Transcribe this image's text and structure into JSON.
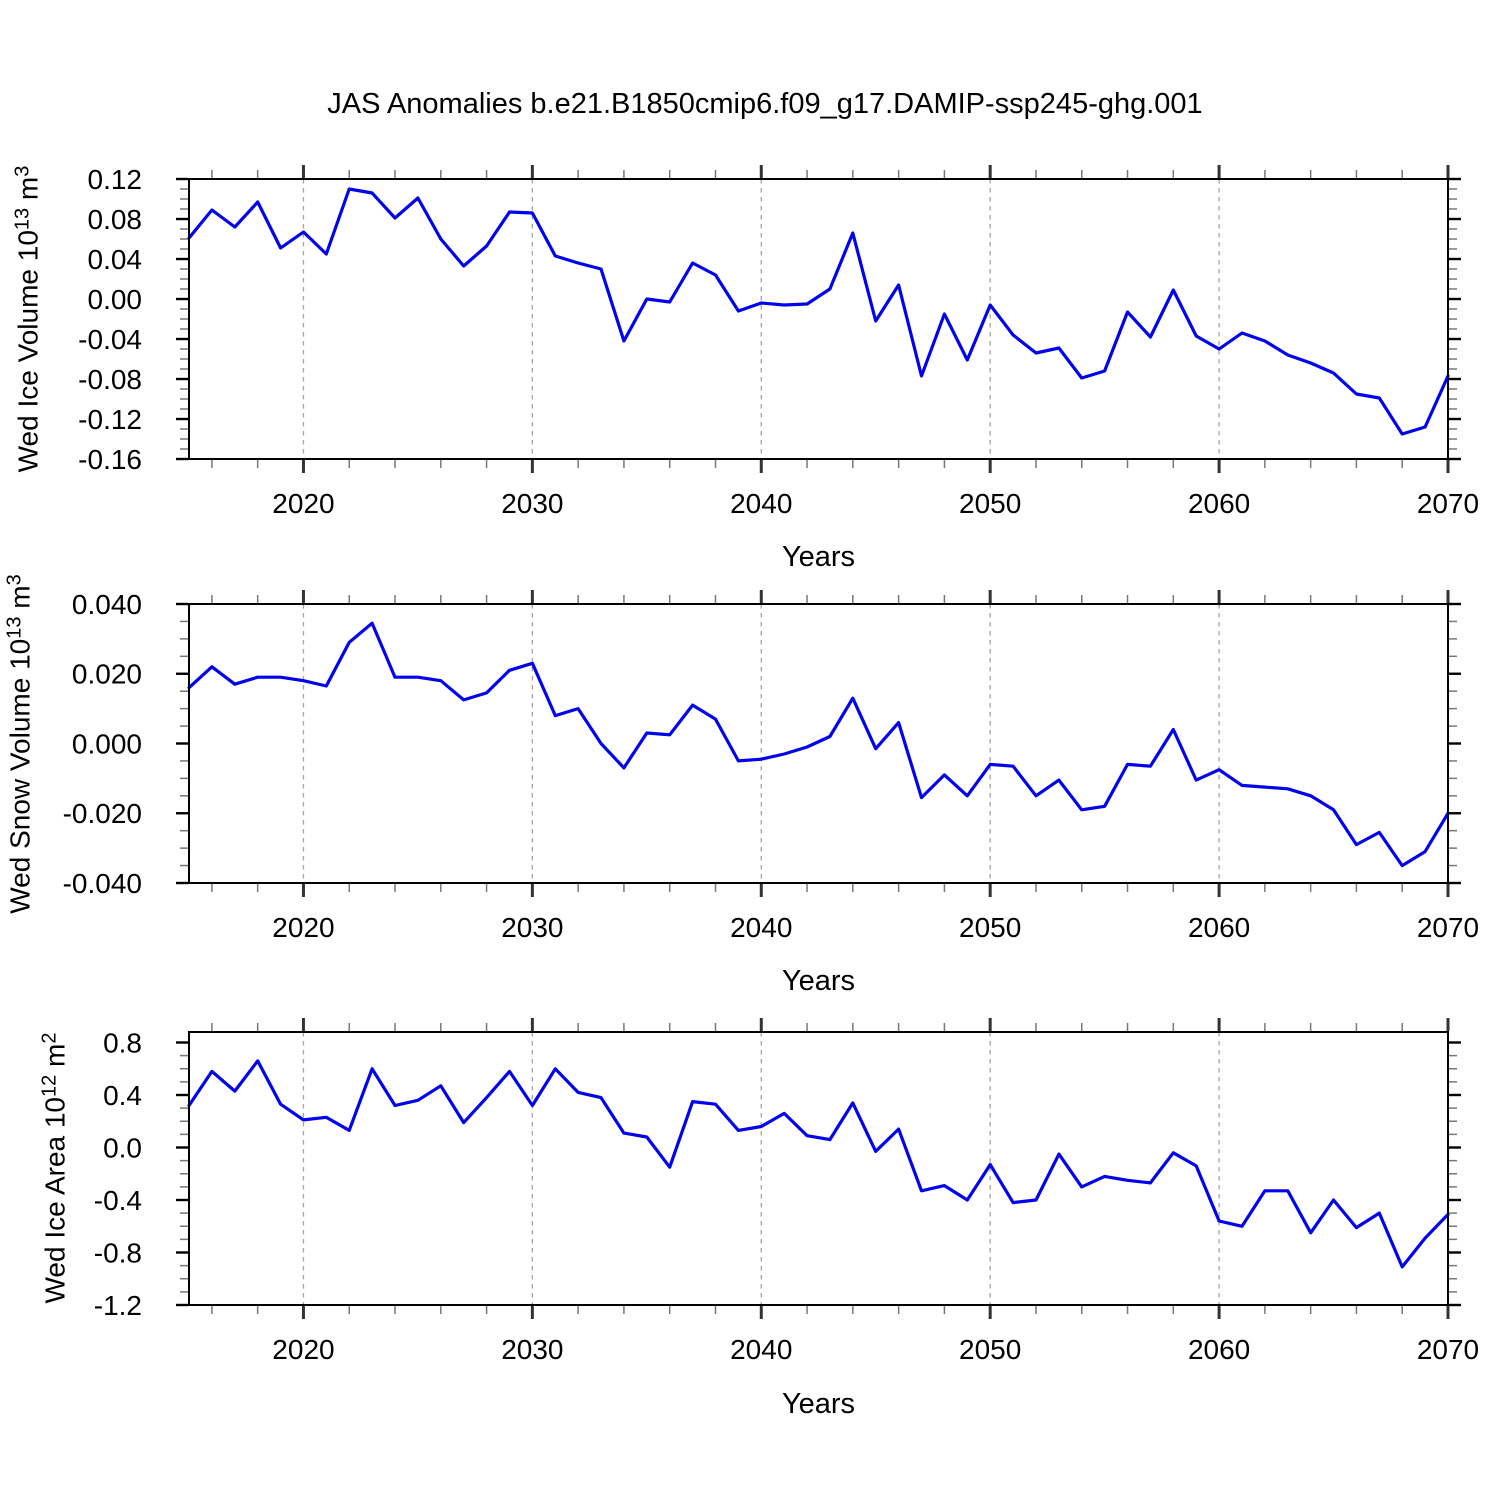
{
  "title": "JAS Anomalies b.e21.B1850cmip6.f09_g17.DAMIP-ssp245-ghg.001",
  "line_color": "#0202ee",
  "grid_color": "#a5a5a5",
  "chart_data": {
    "type": "line",
    "xlabel": "Years",
    "years": [
      2015,
      2016,
      2017,
      2018,
      2019,
      2020,
      2021,
      2022,
      2023,
      2024,
      2025,
      2026,
      2027,
      2028,
      2029,
      2030,
      2031,
      2032,
      2033,
      2034,
      2035,
      2036,
      2037,
      2038,
      2039,
      2040,
      2041,
      2042,
      2043,
      2044,
      2045,
      2046,
      2047,
      2048,
      2049,
      2050,
      2051,
      2052,
      2053,
      2054,
      2055,
      2056,
      2057,
      2058,
      2059,
      2060,
      2061,
      2062,
      2063,
      2064,
      2065,
      2066,
      2067,
      2068,
      2069,
      2070
    ],
    "xlim": [
      2015,
      2070
    ],
    "xticks": [
      2020,
      2030,
      2040,
      2050,
      2060,
      2070
    ],
    "xtick_labels": [
      "2020",
      "2030",
      "2040",
      "2050",
      "2060",
      "2070"
    ],
    "xminor_step_years": 2,
    "grid_years": [
      2020,
      2030,
      2040,
      2050,
      2060
    ],
    "grid_style": "dashed-vertical",
    "legend": "none",
    "panels": [
      {
        "id": "ice-volume",
        "ylabel_text": "Wed Ice Volume 10^13 m^3",
        "ylabel_parts": {
          "pre": "Wed Ice Volume 10",
          "exp1": "13",
          "mid": " m",
          "exp2": "3"
        },
        "ylim": [
          -0.16,
          0.12
        ],
        "yticks": [
          0.12,
          0.08,
          0.04,
          0.0,
          -0.04,
          -0.08,
          -0.12,
          -0.16
        ],
        "ytick_labels": [
          "0.12",
          "0.08",
          "0.04",
          "0.00",
          "-0.04",
          "-0.08",
          "-0.12",
          "-0.16"
        ],
        "yminor_step": 0.01,
        "values": [
          0.061,
          0.089,
          0.072,
          0.097,
          0.051,
          0.067,
          0.045,
          0.11,
          0.106,
          0.081,
          0.101,
          0.06,
          0.033,
          0.053,
          0.087,
          0.086,
          0.043,
          0.036,
          0.03,
          -0.042,
          0.0,
          -0.003,
          0.036,
          0.024,
          -0.012,
          -0.004,
          -0.006,
          -0.005,
          0.01,
          0.066,
          -0.022,
          0.014,
          -0.077,
          -0.015,
          -0.061,
          -0.006,
          -0.036,
          -0.054,
          -0.049,
          -0.079,
          -0.072,
          -0.013,
          -0.038,
          0.009,
          -0.037,
          -0.05,
          -0.034,
          -0.042,
          -0.056,
          -0.064,
          -0.074,
          -0.095,
          -0.099,
          -0.135,
          -0.128,
          -0.077
        ]
      },
      {
        "id": "snow-volume",
        "ylabel_text": "Wed Snow Volume 10^13 m^3",
        "ylabel_parts": {
          "pre": "Wed Snow Volume 10",
          "exp1": "13",
          "mid": " m",
          "exp2": "3"
        },
        "ylim": [
          -0.04,
          0.04
        ],
        "yticks": [
          0.04,
          0.02,
          0.0,
          -0.02,
          -0.04
        ],
        "ytick_labels": [
          "0.040",
          "0.020",
          "0.000",
          "-0.020",
          "-0.040"
        ],
        "yminor_step": 0.005,
        "values": [
          0.016,
          0.022,
          0.017,
          0.019,
          0.019,
          0.018,
          0.0165,
          0.029,
          0.0345,
          0.019,
          0.019,
          0.018,
          0.0125,
          0.0145,
          0.021,
          0.023,
          0.008,
          0.01,
          0.0,
          -0.007,
          0.003,
          0.0025,
          0.011,
          0.007,
          -0.005,
          -0.0045,
          -0.003,
          -0.001,
          0.002,
          0.013,
          -0.0015,
          0.006,
          -0.0155,
          -0.009,
          -0.015,
          -0.006,
          -0.0065,
          -0.015,
          -0.0105,
          -0.019,
          -0.018,
          -0.006,
          -0.0065,
          0.004,
          -0.0105,
          -0.0075,
          -0.012,
          -0.0125,
          -0.013,
          -0.015,
          -0.019,
          -0.029,
          -0.0255,
          -0.035,
          -0.031,
          -0.02
        ]
      },
      {
        "id": "ice-area",
        "ylabel_text": "Wed Ice Area 10^12 m^2",
        "ylabel_parts": {
          "pre": "Wed Ice Area 10",
          "exp1": "12",
          "mid": " m",
          "exp2": "2"
        },
        "ylim": [
          -1.2,
          0.88
        ],
        "yticks": [
          0.8,
          0.4,
          0.0,
          -0.4,
          -0.8,
          -1.2
        ],
        "ytick_labels": [
          "0.8",
          "0.4",
          "0.0",
          "-0.4",
          "-0.8",
          "-1.2"
        ],
        "yminor_step": 0.1,
        "values": [
          0.32,
          0.58,
          0.43,
          0.66,
          0.33,
          0.21,
          0.23,
          0.13,
          0.6,
          0.32,
          0.36,
          0.47,
          0.19,
          0.38,
          0.58,
          0.32,
          0.6,
          0.42,
          0.38,
          0.11,
          0.08,
          -0.15,
          0.35,
          0.33,
          0.13,
          0.16,
          0.26,
          0.09,
          0.06,
          0.34,
          -0.03,
          0.14,
          -0.33,
          -0.29,
          -0.4,
          -0.13,
          -0.42,
          -0.4,
          -0.05,
          -0.3,
          -0.22,
          -0.25,
          -0.27,
          -0.04,
          -0.14,
          -0.56,
          -0.6,
          -0.33,
          -0.33,
          -0.65,
          -0.4,
          -0.61,
          -0.5,
          -0.91,
          -0.69,
          -0.51
        ]
      }
    ]
  }
}
